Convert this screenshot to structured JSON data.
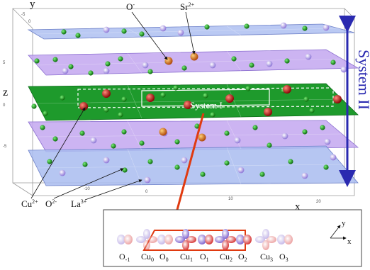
{
  "axes": {
    "x_label": "x",
    "y_label": "y",
    "z_label": "z",
    "x_ticks": [
      "-10",
      "0",
      "10",
      "20"
    ],
    "y_ticks": [
      "-5",
      "0",
      "5"
    ],
    "z_ticks": [
      "5",
      "0",
      "-5"
    ]
  },
  "ions": {
    "oxygen_minus": {
      "base": "O",
      "sup": "-"
    },
    "strontium": {
      "base": "Sr",
      "sup": "2+"
    },
    "copper": {
      "base": "Cu",
      "sup": "2+"
    },
    "oxygen_2minus": {
      "base": "O",
      "sup": "2-"
    },
    "lanthanum": {
      "base": "La",
      "sup": "3+"
    }
  },
  "systems": {
    "system_one": "System I",
    "system_two": "System II"
  },
  "chain": {
    "labels": [
      {
        "base": "O",
        "sub": "-1"
      },
      {
        "base": "Cu",
        "sub": "0"
      },
      {
        "base": "O",
        "sub": "0"
      },
      {
        "base": "Cu",
        "sub": "1"
      },
      {
        "base": "O",
        "sub": "1"
      },
      {
        "base": "Cu",
        "sub": "2"
      },
      {
        "base": "O",
        "sub": "2"
      },
      {
        "base": "Cu",
        "sub": "3"
      },
      {
        "base": "O",
        "sub": "3"
      }
    ],
    "inset_axes": {
      "x": "x",
      "y": "y"
    }
  },
  "colors": {
    "plane_blue": "#a9bcf0",
    "plane_purple": "#c3a7f0",
    "plane_green": "#1e9a2c",
    "oxygen": "#1a9a1a",
    "copper": "#c81818",
    "strontium": "#d06a12",
    "lanthanum": "#b9a6e8",
    "orbital_oxygen": "#a78bd8",
    "system_two_arrow": "#2a2ab0",
    "pointer_arrow": "#e03a10"
  }
}
